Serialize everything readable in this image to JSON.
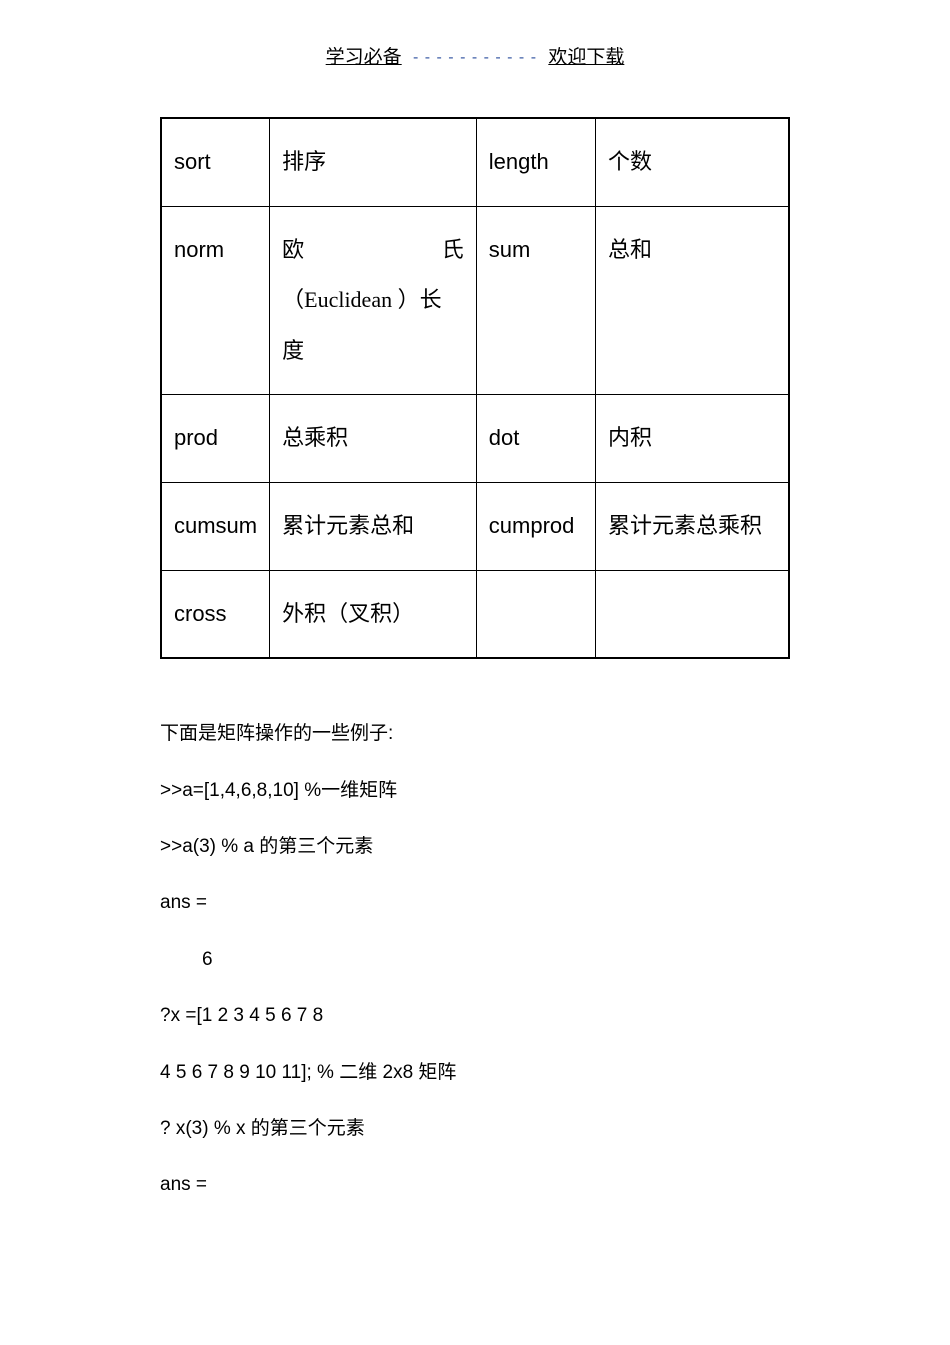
{
  "header": {
    "left": "学习必备",
    "dashes": "- - - - - - - - - - -",
    "right": "欢迎下载"
  },
  "table": {
    "rows": [
      {
        "c1": "sort",
        "c2": "排序",
        "c3": "length",
        "c4": "个数"
      },
      {
        "c1": "norm",
        "c2_line1a": "欧",
        "c2_line1b": "氏",
        "c2_line2": "（Euclidean ）长",
        "c2_line3": "度",
        "c3": "sum",
        "c4": "总和"
      },
      {
        "c1": "prod",
        "c2": "总乘积",
        "c3": "dot",
        "c4": "内积"
      },
      {
        "c1": "cumsum",
        "c2": "累计元素总和",
        "c3": "cumprod",
        "c4": "累计元素总乘积"
      },
      {
        "c1": "cross",
        "c2": "外积（叉积）",
        "c3": "",
        "c4": ""
      }
    ]
  },
  "body": {
    "p1": "下面是矩阵操作的一些例子:",
    "p2": ">>a=[1,4,6,8,10]       %一维矩阵",
    "p3": ">>a(3)    % a  的第三个元素",
    "p4": "ans =",
    "p5": "6",
    "p6": "?x =[1 2 3 4 5 6 7 8",
    "p7": "4 5 6 7 8 9 10 11]; %  二维 2x8  矩阵",
    "p8": "? x(3) % x  的第三个元素",
    "p9": "ans ="
  }
}
